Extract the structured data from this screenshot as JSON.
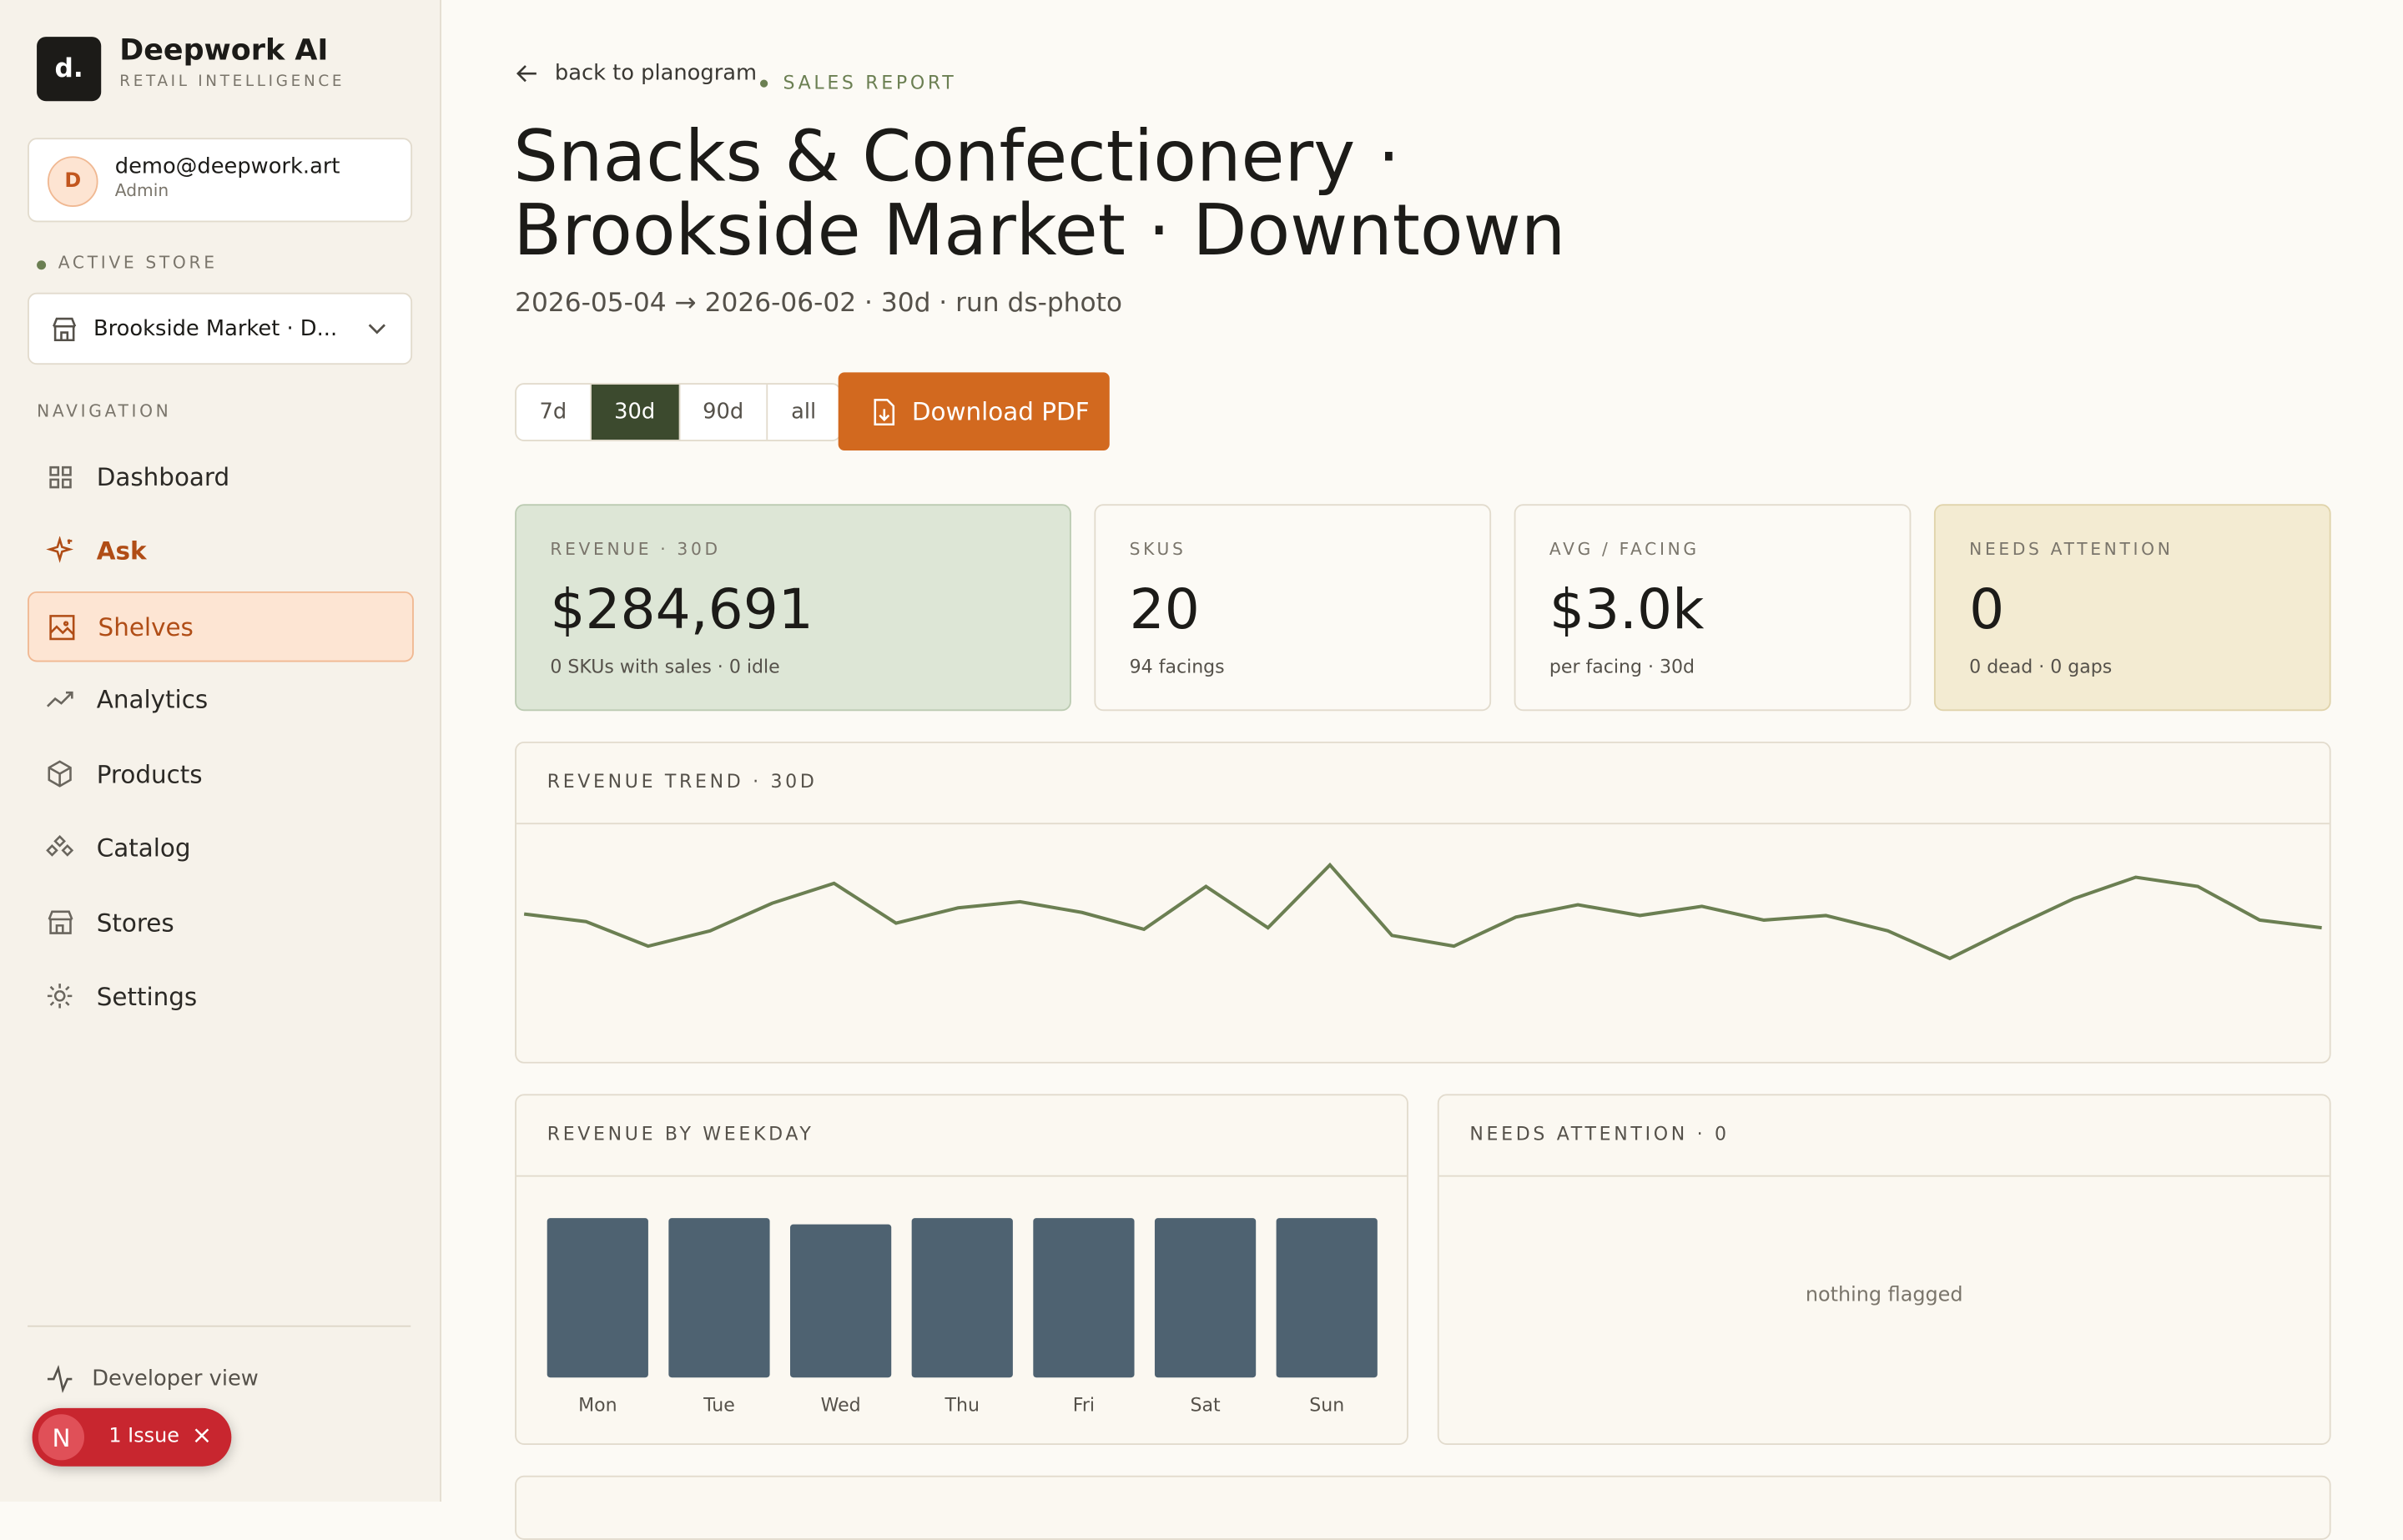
{
  "sidebar": {
    "logo": "d.",
    "brand": "Deepwork AI",
    "tagline": "RETAIL INTELLIGENCE",
    "user": {
      "initial": "D",
      "email": "demo@deepwork.art",
      "role": "Admin"
    },
    "active_store_label": "ACTIVE STORE",
    "store": "Brookside Market · D...",
    "nav_label": "NAVIGATION",
    "nav": [
      "Dashboard",
      "Ask",
      "Shelves",
      "Analytics",
      "Products",
      "Catalog",
      "Stores",
      "Settings"
    ],
    "developer": "Developer view",
    "issue": {
      "badge": "N",
      "text": "1 Issue"
    }
  },
  "header": {
    "back": "back to planogram",
    "eyebrow": "SALES REPORT",
    "title_line1": "Snacks & Confectionery ·",
    "title_line2": "Brookside Market · Downtown",
    "subtitle": "2026-05-04 → 2026-06-02 · 30d · run ds-photo",
    "periods": [
      "7d",
      "30d",
      "90d",
      "all"
    ],
    "active_period": 1,
    "download": "Download PDF"
  },
  "kpis": [
    {
      "label": "REVENUE · 30D",
      "value": "$284,691",
      "note": "0 SKUs with sales · 0 idle"
    },
    {
      "label": "SKUS",
      "value": "20",
      "note": "94 facings"
    },
    {
      "label": "AVG / FACING",
      "value": "$3.0k",
      "note": "per facing · 30d"
    },
    {
      "label": "NEEDS ATTENTION",
      "value": "0",
      "note": "0 dead · 0 gaps"
    }
  ],
  "chart_data": [
    {
      "type": "line",
      "title": "REVENUE TREND · 30D",
      "color": "#6b7f52",
      "values": [
        9490,
        9190,
        8230,
        8830,
        9910,
        10690,
        9130,
        9730,
        9970,
        9550,
        8890,
        10570,
        8950,
        11410,
        8650,
        8230,
        9370,
        9850,
        9430,
        9790,
        9250,
        9430,
        8830,
        7750,
        8950,
        10090,
        10930,
        10570,
        9250,
        8950
      ],
      "ylim": [
        4000,
        13000
      ]
    },
    {
      "type": "bar",
      "title": "REVENUE BY WEEKDAY",
      "color": "#4e6271",
      "categories": [
        "Mon",
        "Tue",
        "Wed",
        "Thu",
        "Fri",
        "Sat",
        "Sun"
      ],
      "values": [
        41000,
        41000,
        39400,
        41000,
        41000,
        41000,
        41000
      ],
      "ylim": [
        0,
        41000
      ]
    }
  ],
  "attention": {
    "title": "NEEDS ATTENTION · 0",
    "empty": "nothing flagged"
  }
}
